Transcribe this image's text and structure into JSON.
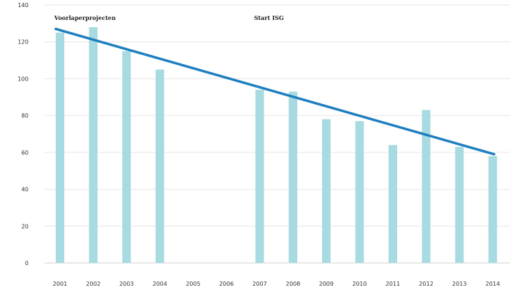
{
  "chart_data": {
    "type": "bar",
    "categories": [
      "2001",
      "2002",
      "2003",
      "2004",
      "2005",
      "2006",
      "2007",
      "2008",
      "2009",
      "2010",
      "2011",
      "2012",
      "2013",
      "2014"
    ],
    "values": [
      125,
      128,
      115,
      105,
      null,
      null,
      94,
      93,
      78,
      77,
      64,
      83,
      63,
      58
    ],
    "ylim": [
      0,
      140
    ],
    "yticks": [
      0,
      20,
      40,
      60,
      80,
      100,
      120,
      140
    ],
    "grid": true,
    "trend_line": {
      "from": {
        "x": "2001",
        "y": 127
      },
      "to": {
        "x": "2014",
        "y": 59
      }
    },
    "annotations": [
      {
        "text": "Voorlaperprojecten",
        "at_category": "2001"
      },
      {
        "text": "Start ISG",
        "at_category": "2007"
      }
    ],
    "colors": {
      "bars": "#a8dbe1",
      "trend": "#1f7fc0",
      "grid": "#e6e6e6"
    }
  }
}
